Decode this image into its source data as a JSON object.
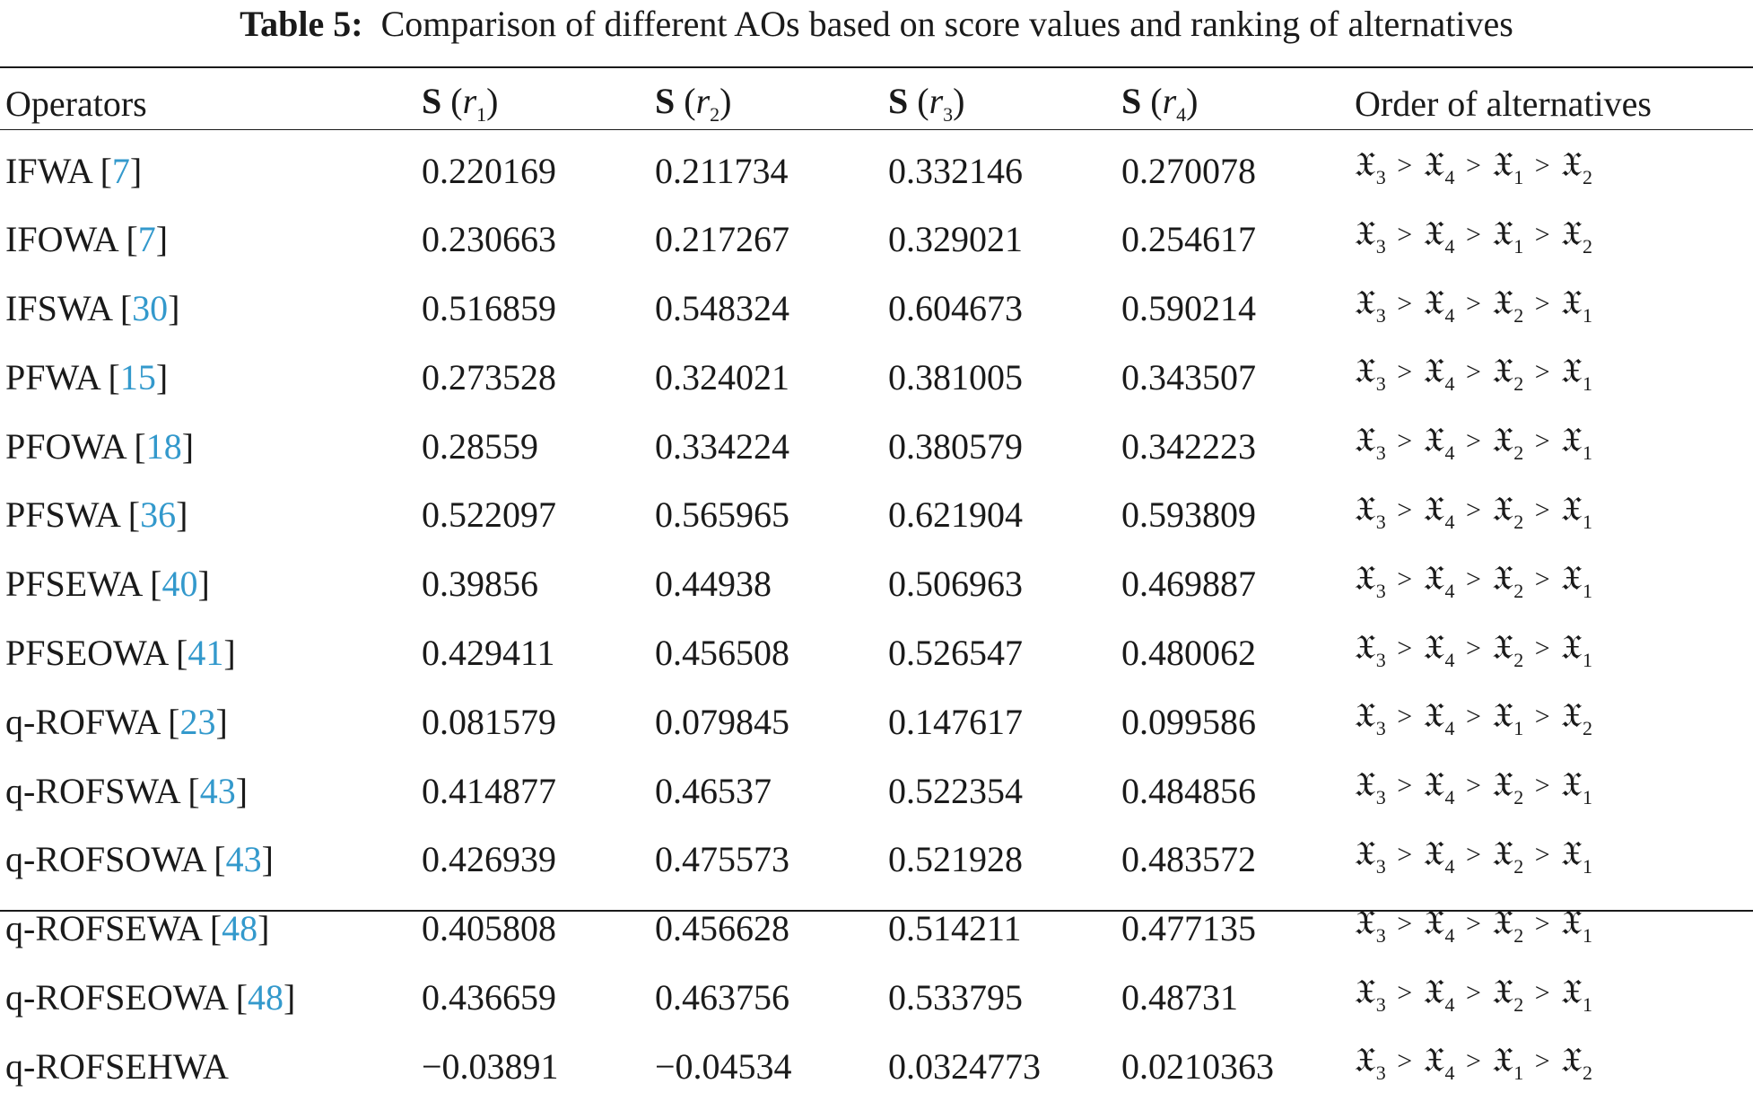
{
  "caption": {
    "label": "Table 5:",
    "text": "Comparison of different AOs based on score values and ranking of alternatives"
  },
  "header": {
    "operators": "Operators",
    "score_letter": "S",
    "score_var": "r",
    "score_indices": [
      "1",
      "2",
      "3",
      "4"
    ],
    "order": "Order of alternatives"
  },
  "alt_symbol": "𝔛",
  "rows": [
    {
      "name": "IFWA",
      "ref": "7",
      "s1": "0.220169",
      "s2": "0.211734",
      "s3": "0.332146",
      "s4": "0.270078",
      "order": [
        "3",
        "4",
        "1",
        "2"
      ]
    },
    {
      "name": "IFOWA",
      "ref": "7",
      "s1": "0.230663",
      "s2": "0.217267",
      "s3": "0.329021",
      "s4": "0.254617",
      "order": [
        "3",
        "4",
        "1",
        "2"
      ]
    },
    {
      "name": "IFSWA",
      "ref": "30",
      "s1": "0.516859",
      "s2": "0.548324",
      "s3": "0.604673",
      "s4": "0.590214",
      "order": [
        "3",
        "4",
        "2",
        "1"
      ]
    },
    {
      "name": "PFWA",
      "ref": "15",
      "s1": "0.273528",
      "s2": "0.324021",
      "s3": "0.381005",
      "s4": "0.343507",
      "order": [
        "3",
        "4",
        "2",
        "1"
      ]
    },
    {
      "name": "PFOWA",
      "ref": "18",
      "s1": "0.28559",
      "s2": "0.334224",
      "s3": "0.380579",
      "s4": "0.342223",
      "order": [
        "3",
        "4",
        "2",
        "1"
      ]
    },
    {
      "name": "PFSWA",
      "ref": "36",
      "s1": "0.522097",
      "s2": "0.565965",
      "s3": "0.621904",
      "s4": "0.593809",
      "order": [
        "3",
        "4",
        "2",
        "1"
      ]
    },
    {
      "name": "PFSEWA",
      "ref": "40",
      "s1": "0.39856",
      "s2": "0.44938",
      "s3": "0.506963",
      "s4": "0.469887",
      "order": [
        "3",
        "4",
        "2",
        "1"
      ]
    },
    {
      "name": "PFSEOWA",
      "ref": "41",
      "s1": "0.429411",
      "s2": "0.456508",
      "s3": "0.526547",
      "s4": "0.480062",
      "order": [
        "3",
        "4",
        "2",
        "1"
      ]
    },
    {
      "name": "q-ROFWA",
      "ref": "23",
      "s1": "0.081579",
      "s2": "0.079845",
      "s3": "0.147617",
      "s4": "0.099586",
      "order": [
        "3",
        "4",
        "1",
        "2"
      ]
    },
    {
      "name": "q-ROFSWA",
      "ref": "43",
      "s1": "0.414877",
      "s2": "0.46537",
      "s3": "0.522354",
      "s4": "0.484856",
      "order": [
        "3",
        "4",
        "2",
        "1"
      ]
    },
    {
      "name": "q-ROFSOWA",
      "ref": "43",
      "s1": "0.426939",
      "s2": "0.475573",
      "s3": "0.521928",
      "s4": "0.483572",
      "order": [
        "3",
        "4",
        "2",
        "1"
      ]
    },
    {
      "name": "q-ROFSEWA",
      "ref": "48",
      "s1": "0.405808",
      "s2": "0.456628",
      "s3": "0.514211",
      "s4": "0.477135",
      "order": [
        "3",
        "4",
        "2",
        "1"
      ]
    },
    {
      "name": "q-ROFSEOWA",
      "ref": "48",
      "s1": "0.436659",
      "s2": "0.463756",
      "s3": "0.533795",
      "s4": "0.48731",
      "order": [
        "3",
        "4",
        "2",
        "1"
      ]
    },
    {
      "name": "q-ROFSEHWA",
      "ref": "",
      "s1": "−0.03891",
      "s2": "−0.04534",
      "s3": "0.0324773",
      "s4": "0.0210363",
      "order": [
        "3",
        "4",
        "1",
        "2"
      ]
    }
  ]
}
